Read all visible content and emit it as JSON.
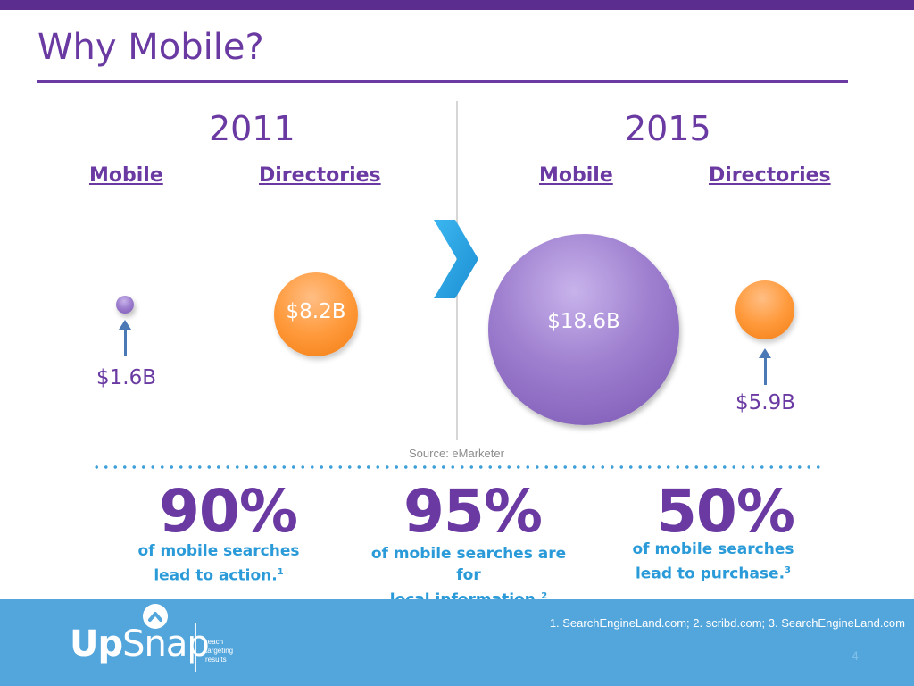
{
  "slide": {
    "title": "Why Mobile?",
    "left": {
      "year": "2011",
      "col1": "Mobile",
      "col2": "Directories",
      "mobile_value": "$1.6B",
      "directories_value": "$8.2B"
    },
    "right": {
      "year": "2015",
      "col1": "Mobile",
      "col2": "Directories",
      "mobile_value": "$18.6B",
      "directories_value": "$5.9B"
    },
    "source": "Source: eMarketer"
  },
  "stats": [
    {
      "value": "90%",
      "line1": "of mobile searches",
      "line2": "lead to action.",
      "ref": "1"
    },
    {
      "value": "95%",
      "line1": "of mobile searches are for",
      "line2": "local information.",
      "ref": "2"
    },
    {
      "value": "50%",
      "line1": "of mobile searches",
      "line2": "lead to purchase.",
      "ref": "3"
    }
  ],
  "footer": {
    "logo_up": "Up",
    "logo_snap": "Snap",
    "tagline_1": "reach",
    "tagline_2": "targeting",
    "tagline_3": "results",
    "references": "1. SearchEngineLand.com; 2. scribd.com; 3. SearchEngineLand.com",
    "page_number": "4"
  },
  "icons": {
    "chevron": "chevron-right-icon",
    "arrow": "arrow-up-icon",
    "logo_mark": "caret-up-circle-icon"
  },
  "colors": {
    "primary_purple": "#6a3aa2",
    "accent_blue": "#2a9bd8",
    "footer_blue": "#53a6dc",
    "orange": "#ff9a3c"
  }
}
